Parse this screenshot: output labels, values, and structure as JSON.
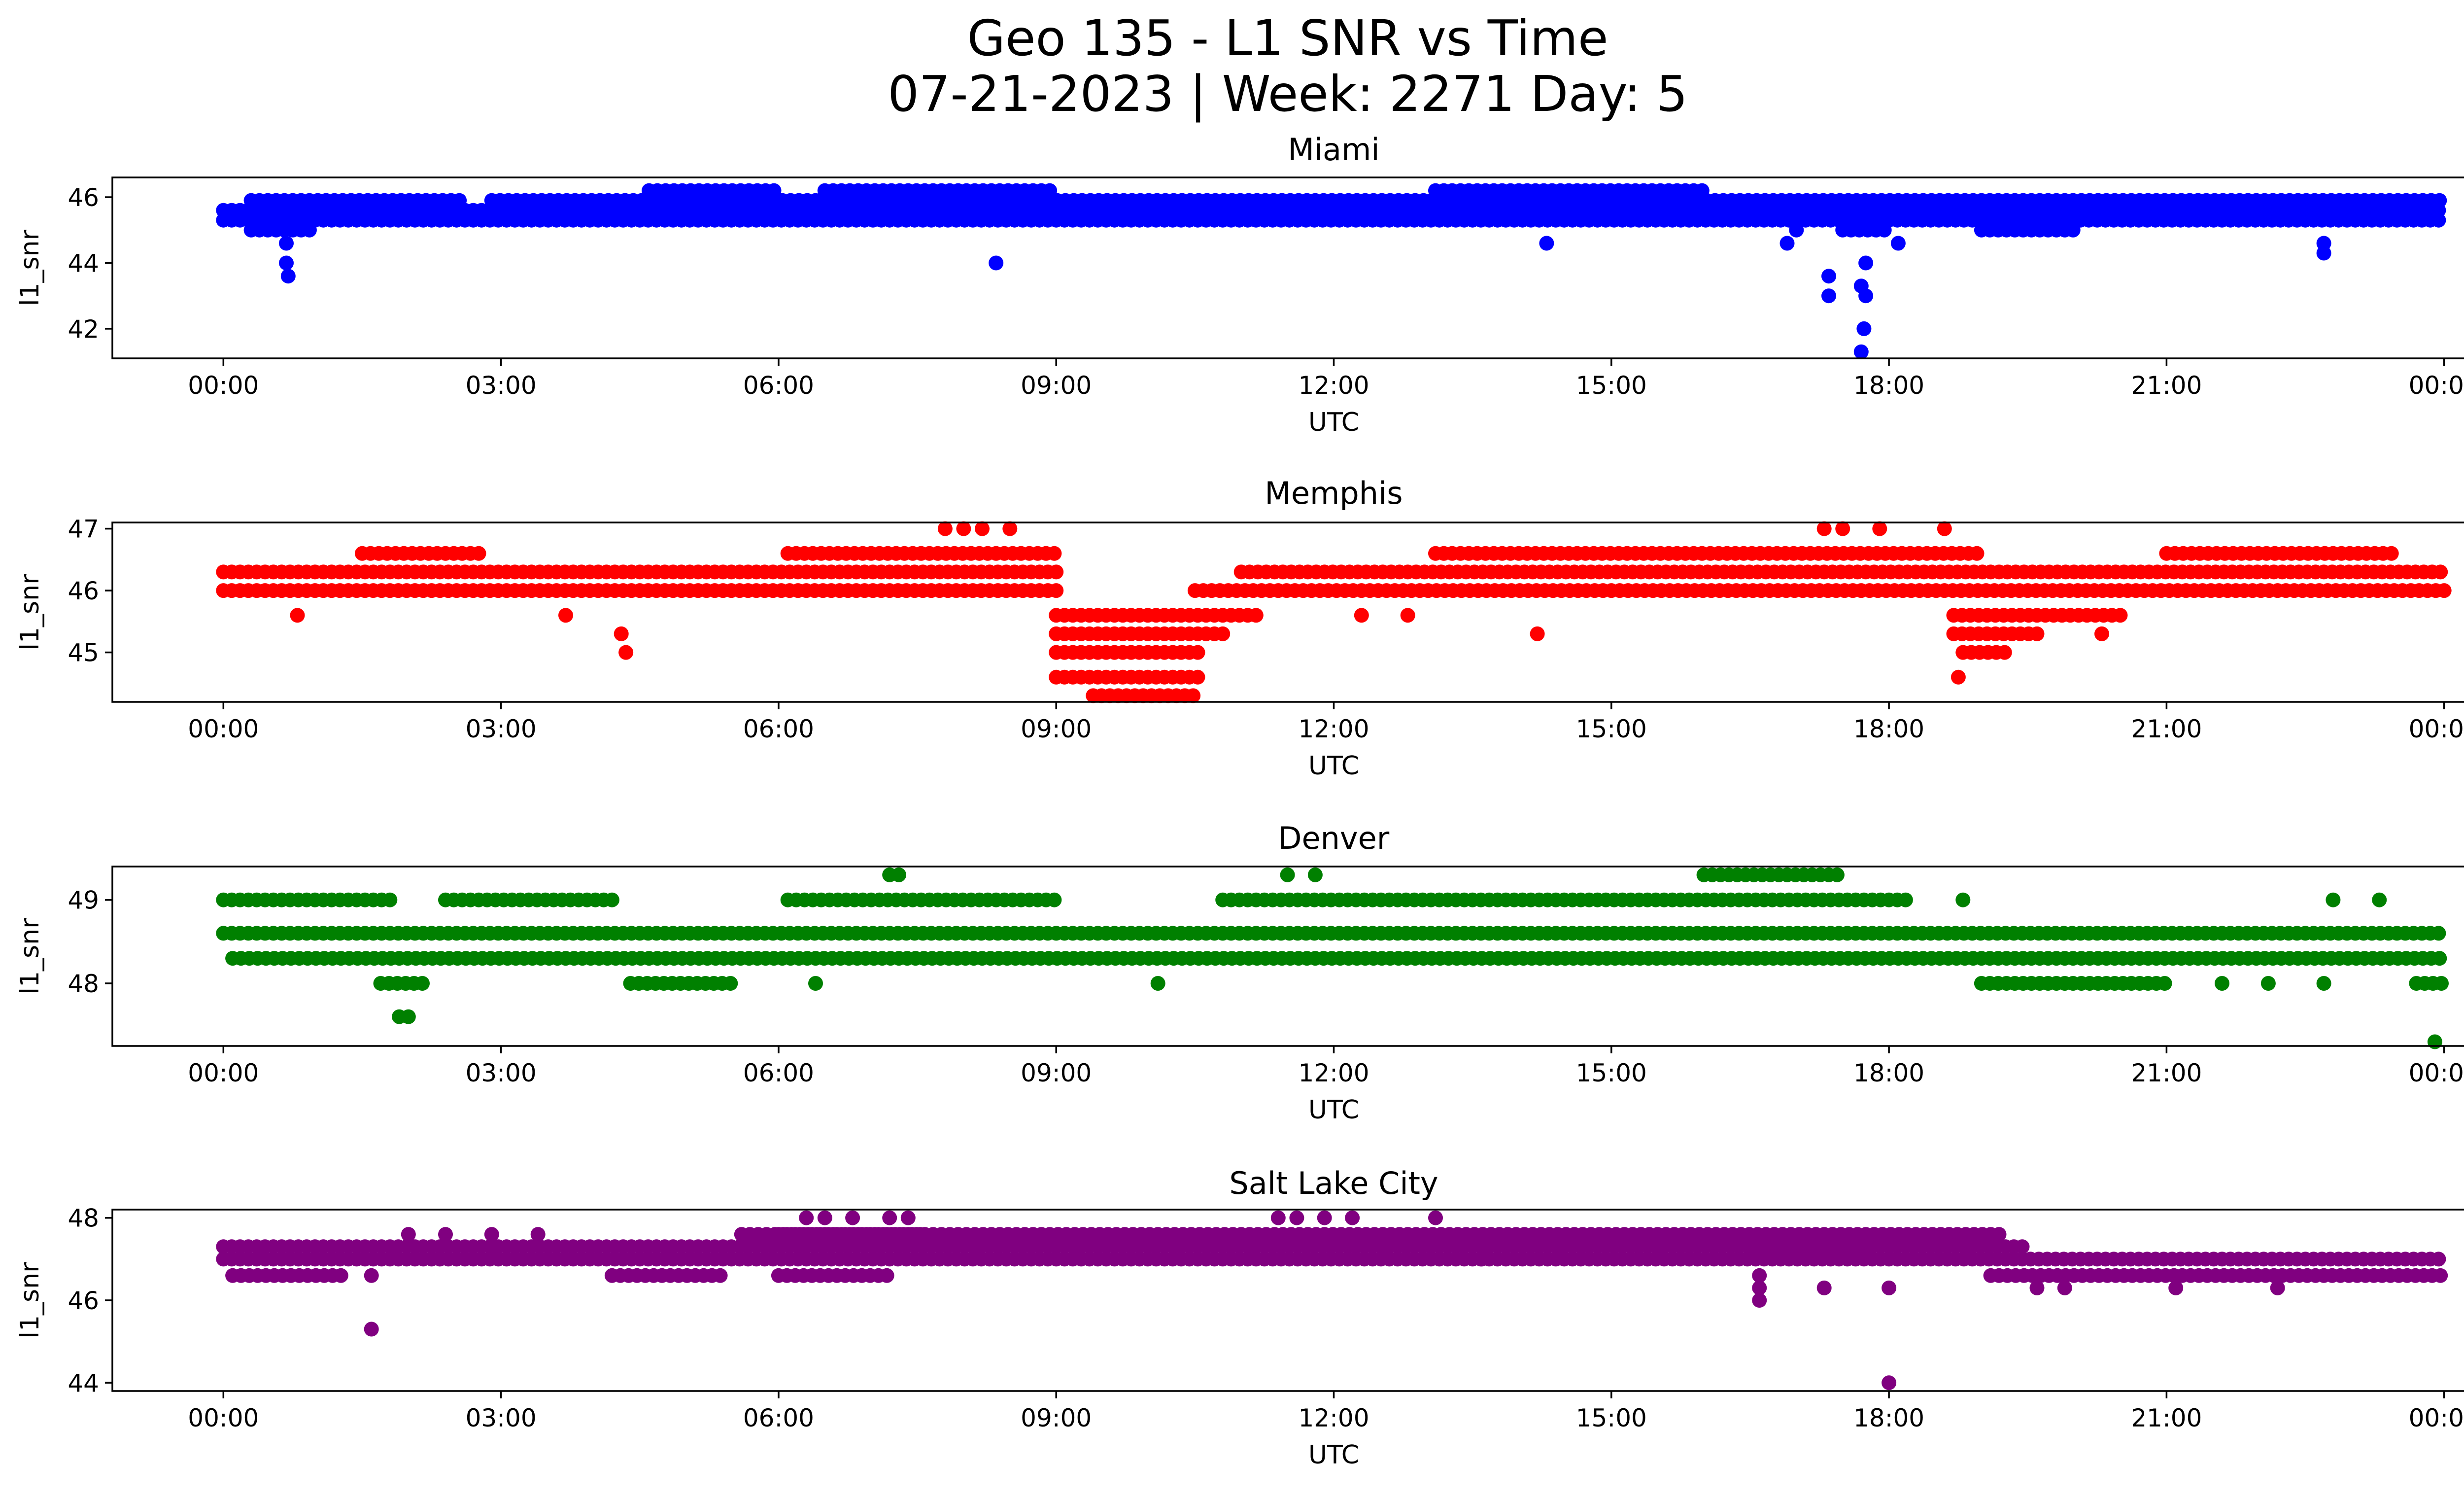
{
  "title_lines": [
    "Geo 135 - L1 SNR vs Time",
    "07-21-2023 | Week: 2271 Day: 5"
  ],
  "x_ticks": [
    "00:00",
    "03:00",
    "06:00",
    "09:00",
    "12:00",
    "15:00",
    "18:00",
    "21:00",
    "00:00"
  ],
  "chart_data": [
    {
      "type": "scatter",
      "title": "Miami",
      "xlabel": "UTC",
      "ylabel": "l1_snr",
      "color": "#0000ff",
      "x_unit": "hours UTC",
      "xlim": [
        -1.2,
        25.2
      ],
      "ylim": [
        41.1,
        46.6
      ],
      "yticks": [
        42,
        44,
        46
      ],
      "bands": [
        {
          "x": [
            0.0,
            24.0
          ],
          "y": 45.3
        },
        {
          "x": [
            0.0,
            24.0
          ],
          "y": 45.6
        },
        {
          "x": [
            0.3,
            2.6
          ],
          "y": 45.9
        },
        {
          "x": [
            2.9,
            4.6
          ],
          "y": 45.9
        },
        {
          "x": [
            4.6,
            24.0
          ],
          "y": 45.9
        },
        {
          "x": [
            4.6,
            6.0
          ],
          "y": 46.2
        },
        {
          "x": [
            6.5,
            9.0
          ],
          "y": 46.2
        },
        {
          "x": [
            13.1,
            16.0
          ],
          "y": 46.2
        },
        {
          "x": [
            0.3,
            1.0
          ],
          "y": 45.0
        },
        {
          "x": [
            17.5,
            18.0
          ],
          "y": 45.0
        },
        {
          "x": [
            19.0,
            20.0
          ],
          "y": 45.0
        }
      ],
      "points": [
        {
          "x": 0.68,
          "y": 44.6
        },
        {
          "x": 0.68,
          "y": 44.0
        },
        {
          "x": 0.7,
          "y": 43.6
        },
        {
          "x": 8.35,
          "y": 44.0
        },
        {
          "x": 14.3,
          "y": 44.6
        },
        {
          "x": 17.35,
          "y": 43.6
        },
        {
          "x": 17.35,
          "y": 43.0
        },
        {
          "x": 17.7,
          "y": 41.3
        },
        {
          "x": 17.73,
          "y": 42.0
        },
        {
          "x": 17.7,
          "y": 43.3
        },
        {
          "x": 17.75,
          "y": 43.0
        },
        {
          "x": 17.75,
          "y": 44.0
        },
        {
          "x": 18.1,
          "y": 44.6
        },
        {
          "x": 22.7,
          "y": 44.6
        },
        {
          "x": 22.7,
          "y": 44.3
        },
        {
          "x": 16.9,
          "y": 44.6
        },
        {
          "x": 17.0,
          "y": 45.0
        }
      ]
    },
    {
      "type": "scatter",
      "title": "Memphis",
      "xlabel": "UTC",
      "ylabel": "l1_snr",
      "color": "#ff0000",
      "x_unit": "hours UTC",
      "xlim": [
        -1.2,
        25.2
      ],
      "ylim": [
        44.2,
        47.1
      ],
      "yticks": [
        45,
        46,
        47
      ],
      "bands": [
        {
          "x": [
            0.0,
            9.0
          ],
          "y": 46.0
        },
        {
          "x": [
            0.0,
            9.0
          ],
          "y": 46.3
        },
        {
          "x": [
            6.1,
            9.0
          ],
          "y": 46.6
        },
        {
          "x": [
            1.5,
            2.8
          ],
          "y": 46.6
        },
        {
          "x": [
            9.0,
            10.8
          ],
          "y": 45.3
        },
        {
          "x": [
            9.0,
            10.6
          ],
          "y": 45.0
        },
        {
          "x": [
            9.0,
            10.6
          ],
          "y": 44.6
        },
        {
          "x": [
            9.0,
            11.2
          ],
          "y": 45.6
        },
        {
          "x": [
            9.4,
            10.5
          ],
          "y": 44.3
        },
        {
          "x": [
            10.5,
            24.0
          ],
          "y": 46.0
        },
        {
          "x": [
            11.0,
            24.0
          ],
          "y": 46.3
        },
        {
          "x": [
            13.1,
            19.0
          ],
          "y": 46.6
        },
        {
          "x": [
            21.0,
            23.5
          ],
          "y": 46.6
        },
        {
          "x": [
            18.7,
            20.5
          ],
          "y": 45.6
        },
        {
          "x": [
            18.7,
            19.6
          ],
          "y": 45.3
        },
        {
          "x": [
            18.8,
            19.3
          ],
          "y": 45.0
        }
      ],
      "points": [
        {
          "x": 0.8,
          "y": 45.6
        },
        {
          "x": 3.7,
          "y": 45.6
        },
        {
          "x": 4.3,
          "y": 45.3
        },
        {
          "x": 4.35,
          "y": 45.0
        },
        {
          "x": 7.8,
          "y": 47.0
        },
        {
          "x": 8.0,
          "y": 47.0
        },
        {
          "x": 8.2,
          "y": 47.0
        },
        {
          "x": 8.5,
          "y": 47.0
        },
        {
          "x": 14.2,
          "y": 45.3
        },
        {
          "x": 17.3,
          "y": 47.0
        },
        {
          "x": 17.5,
          "y": 47.0
        },
        {
          "x": 17.9,
          "y": 47.0
        },
        {
          "x": 18.6,
          "y": 47.0
        },
        {
          "x": 18.75,
          "y": 44.6
        },
        {
          "x": 20.3,
          "y": 45.3
        },
        {
          "x": 12.3,
          "y": 45.6
        },
        {
          "x": 12.8,
          "y": 45.6
        }
      ]
    },
    {
      "type": "scatter",
      "title": "Denver",
      "xlabel": "UTC",
      "ylabel": "l1_snr",
      "color": "#008000",
      "x_unit": "hours UTC",
      "xlim": [
        -1.2,
        25.2
      ],
      "ylim": [
        47.25,
        49.4
      ],
      "yticks": [
        48,
        49
      ],
      "bands": [
        {
          "x": [
            0.0,
            24.0
          ],
          "y": 48.6
        },
        {
          "x": [
            0.1,
            24.0
          ],
          "y": 48.3
        },
        {
          "x": [
            0.0,
            1.8
          ],
          "y": 49.0
        },
        {
          "x": [
            2.4,
            4.2
          ],
          "y": 49.0
        },
        {
          "x": [
            6.1,
            9.0
          ],
          "y": 49.0
        },
        {
          "x": [
            10.8,
            18.2
          ],
          "y": 49.0
        },
        {
          "x": [
            1.7,
            2.2
          ],
          "y": 48.0
        },
        {
          "x": [
            4.4,
            5.5
          ],
          "y": 48.0
        },
        {
          "x": [
            19.0,
            21.0
          ],
          "y": 48.0
        },
        {
          "x": [
            23.7,
            24.0
          ],
          "y": 48.0
        },
        {
          "x": [
            16.0,
            17.5
          ],
          "y": 49.3
        }
      ],
      "points": [
        {
          "x": 1.9,
          "y": 47.6
        },
        {
          "x": 2.0,
          "y": 47.6
        },
        {
          "x": 7.2,
          "y": 49.3
        },
        {
          "x": 7.3,
          "y": 49.3
        },
        {
          "x": 11.5,
          "y": 49.3
        },
        {
          "x": 11.8,
          "y": 49.3
        },
        {
          "x": 10.1,
          "y": 48.0
        },
        {
          "x": 6.4,
          "y": 48.0
        },
        {
          "x": 18.8,
          "y": 49.0
        },
        {
          "x": 22.8,
          "y": 49.0
        },
        {
          "x": 23.3,
          "y": 49.0
        },
        {
          "x": 23.9,
          "y": 47.3
        },
        {
          "x": 22.1,
          "y": 48.0
        },
        {
          "x": 22.7,
          "y": 48.0
        },
        {
          "x": 21.6,
          "y": 48.0
        }
      ]
    },
    {
      "type": "scatter",
      "title": "Salt Lake City",
      "xlabel": "UTC",
      "ylabel": "l1_snr",
      "color": "#800080",
      "x_unit": "hours UTC",
      "xlim": [
        -1.2,
        25.2
      ],
      "ylim": [
        43.8,
        48.2
      ],
      "yticks": [
        44,
        46,
        48
      ],
      "bands": [
        {
          "x": [
            0.0,
            24.0
          ],
          "y": 47.0
        },
        {
          "x": [
            0.0,
            19.5
          ],
          "y": 47.3
        },
        {
          "x": [
            0.1,
            1.3
          ],
          "y": 46.6
        },
        {
          "x": [
            4.2,
            5.4
          ],
          "y": 46.6
        },
        {
          "x": [
            5.6,
            19.2
          ],
          "y": 47.6
        },
        {
          "x": [
            19.1,
            24.0
          ],
          "y": 46.6
        },
        {
          "x": [
            6.0,
            7.6
          ],
          "y": 47.6
        },
        {
          "x": [
            6.0,
            7.2
          ],
          "y": 46.6
        },
        {
          "x": [
            16.5,
            17.8
          ],
          "y": 47.3
        }
      ],
      "points": [
        {
          "x": 1.6,
          "y": 45.3
        },
        {
          "x": 1.6,
          "y": 46.6
        },
        {
          "x": 6.3,
          "y": 48.0
        },
        {
          "x": 6.5,
          "y": 48.0
        },
        {
          "x": 6.8,
          "y": 48.0
        },
        {
          "x": 7.2,
          "y": 48.0
        },
        {
          "x": 7.4,
          "y": 48.0
        },
        {
          "x": 11.4,
          "y": 48.0
        },
        {
          "x": 11.6,
          "y": 48.0
        },
        {
          "x": 11.9,
          "y": 48.0
        },
        {
          "x": 12.2,
          "y": 48.0
        },
        {
          "x": 13.1,
          "y": 48.0
        },
        {
          "x": 16.6,
          "y": 46.0
        },
        {
          "x": 16.6,
          "y": 46.3
        },
        {
          "x": 16.6,
          "y": 46.6
        },
        {
          "x": 17.3,
          "y": 46.3
        },
        {
          "x": 18.0,
          "y": 44.0
        },
        {
          "x": 18.0,
          "y": 46.3
        },
        {
          "x": 19.6,
          "y": 46.3
        },
        {
          "x": 19.9,
          "y": 46.3
        },
        {
          "x": 21.1,
          "y": 46.3
        },
        {
          "x": 22.2,
          "y": 46.3
        },
        {
          "x": 13.6,
          "y": 47.0
        },
        {
          "x": 2.0,
          "y": 47.6
        },
        {
          "x": 2.4,
          "y": 47.6
        },
        {
          "x": 2.9,
          "y": 47.6
        },
        {
          "x": 3.4,
          "y": 47.6
        }
      ]
    }
  ]
}
